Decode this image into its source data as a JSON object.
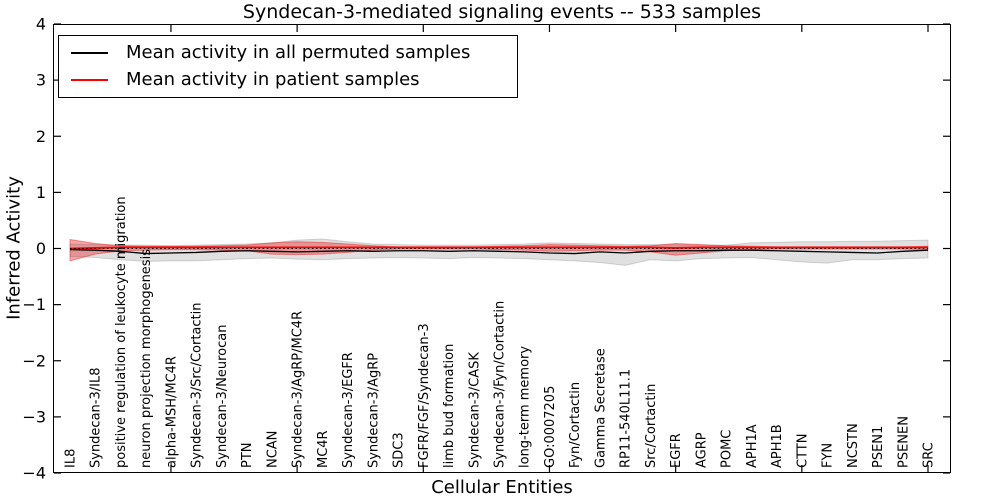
{
  "chart_data": {
    "type": "line",
    "title": "Syndecan-3-mediated signaling events -- 533 samples",
    "xlabel": "Cellular Entities",
    "ylabel": "Inferred Activity",
    "ylim": [
      -4,
      4
    ],
    "yticks": [
      -4,
      -3,
      -2,
      -1,
      0,
      1,
      2,
      3,
      4
    ],
    "x_major_tick_indices": [
      4,
      9,
      14,
      19,
      24,
      29,
      34
    ],
    "grid": false,
    "legend_position": "upper left",
    "zero_line": 0,
    "zero_line_style": "dotted",
    "categories": [
      "IL8",
      "Syndecan-3/IL8",
      "positive regulation of leukocyte migration",
      "neuron projection morphogenesis",
      "alpha-MSH/MC4R",
      "Syndecan-3/Src/Cortactin",
      "Syndecan-3/Neurocan",
      "PTN",
      "NCAN",
      "Syndecan-3/AgRP/MC4R",
      "MC4R",
      "Syndecan-3/EGFR",
      "Syndecan-3/AgRP",
      "SDC3",
      "FGFR/FGF/Syndecan-3",
      "limb bud formation",
      "Syndecan-3/CASK",
      "Syndecan-3/Fyn/Cortactin",
      "long-term memory",
      "GO:0007205",
      "Fyn/Cortactin",
      "Gamma Secretase",
      "RP11-540L11.1",
      "Src/Cortactin",
      "EGFR",
      "AGRP",
      "POMC",
      "APH1A",
      "APH1B",
      "CTTN",
      "FYN",
      "NCSTN",
      "PSEN1",
      "PSENEN",
      "SRC"
    ],
    "series": [
      {
        "name": "Mean activity in all permuted samples",
        "color": "#000000",
        "band_fill": "rgba(0,0,0,0.12)",
        "band_edge": "rgba(0,0,0,0.15)",
        "values": [
          -0.02,
          -0.03,
          -0.05,
          -0.09,
          -0.08,
          -0.07,
          -0.05,
          -0.04,
          -0.05,
          -0.06,
          -0.05,
          -0.04,
          -0.05,
          -0.04,
          -0.04,
          -0.05,
          -0.04,
          -0.05,
          -0.06,
          -0.08,
          -0.09,
          -0.06,
          -0.08,
          -0.05,
          -0.04,
          -0.04,
          -0.03,
          -0.03,
          -0.04,
          -0.05,
          -0.06,
          -0.07,
          -0.08,
          -0.05,
          -0.03
        ],
        "band_hi": [
          0.08,
          0.07,
          0.06,
          0.06,
          0.05,
          0.06,
          0.07,
          0.08,
          0.1,
          0.15,
          0.17,
          0.12,
          0.08,
          0.07,
          0.06,
          0.06,
          0.06,
          0.07,
          0.08,
          0.1,
          0.09,
          0.08,
          0.07,
          0.07,
          0.07,
          0.06,
          0.06,
          0.1,
          0.11,
          0.12,
          0.12,
          0.13,
          0.13,
          0.14,
          0.15
        ],
        "band_lo": [
          -0.14,
          -0.16,
          -0.2,
          -0.23,
          -0.22,
          -0.22,
          -0.2,
          -0.18,
          -0.17,
          -0.19,
          -0.2,
          -0.18,
          -0.17,
          -0.16,
          -0.17,
          -0.18,
          -0.16,
          -0.17,
          -0.18,
          -0.2,
          -0.22,
          -0.25,
          -0.3,
          -0.2,
          -0.22,
          -0.18,
          -0.17,
          -0.16,
          -0.2,
          -0.24,
          -0.26,
          -0.2,
          -0.2,
          -0.18,
          -0.17
        ]
      },
      {
        "name": "Mean activity in patient samples",
        "color": "#ff0000",
        "band_fill": "rgba(228,26,28,0.38)",
        "band_edge": "rgba(228,26,28,0.45)",
        "values": [
          0.0,
          0.01,
          0.02,
          0.02,
          0.02,
          0.02,
          0.02,
          0.02,
          0.02,
          0.02,
          0.02,
          0.02,
          0.02,
          0.02,
          0.02,
          0.02,
          0.02,
          0.02,
          0.02,
          0.02,
          0.02,
          0.02,
          0.02,
          0.02,
          0.01,
          0.02,
          0.02,
          0.02,
          0.02,
          0.02,
          0.02,
          0.02,
          0.02,
          0.02,
          0.02
        ],
        "band_hi": [
          0.16,
          0.09,
          0.05,
          0.04,
          0.04,
          0.04,
          0.05,
          0.06,
          0.1,
          0.12,
          0.11,
          0.08,
          0.05,
          0.03,
          0.03,
          0.03,
          0.03,
          0.04,
          0.05,
          0.07,
          0.06,
          0.05,
          0.04,
          0.05,
          0.09,
          0.07,
          0.05,
          0.04,
          0.03,
          0.03,
          0.03,
          0.03,
          0.03,
          0.03,
          0.04
        ],
        "band_lo": [
          -0.22,
          -0.1,
          -0.04,
          -0.03,
          -0.02,
          -0.02,
          -0.03,
          -0.04,
          -0.1,
          -0.11,
          -0.1,
          -0.07,
          -0.03,
          -0.01,
          -0.01,
          -0.01,
          -0.01,
          -0.02,
          -0.03,
          -0.05,
          -0.04,
          -0.03,
          -0.03,
          -0.06,
          -0.12,
          -0.08,
          -0.04,
          -0.02,
          -0.01,
          -0.01,
          -0.01,
          -0.01,
          -0.01,
          -0.01,
          -0.02
        ]
      }
    ]
  }
}
